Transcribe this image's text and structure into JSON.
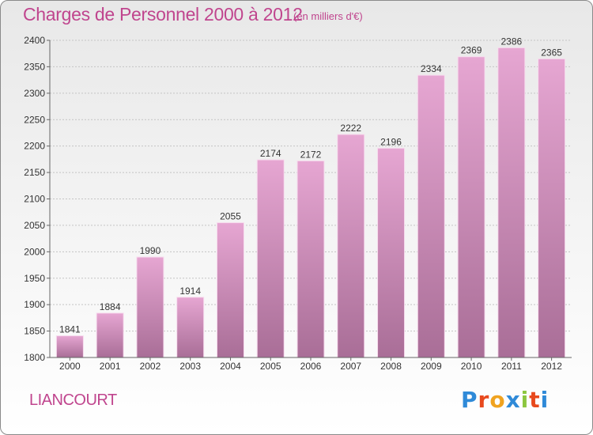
{
  "title": "Charges de Personnel 2000 à 2012",
  "subtitle": "(en milliers d'€)",
  "commune": "LIANCOURT",
  "brand": {
    "text": "Proxiti",
    "letter_colors": [
      "#2f8ad8",
      "#e8491d",
      "#f0a320",
      "#2f8ad8",
      "#8cc63f",
      "#e8491d",
      "#2f8ad8"
    ]
  },
  "colors": {
    "bar_top": "#e6a6d2",
    "bar_bottom": "#a96e97",
    "accent": "#c0458e"
  },
  "chart_data": {
    "type": "bar",
    "categories": [
      "2000",
      "2001",
      "2002",
      "2003",
      "2004",
      "2005",
      "2006",
      "2007",
      "2008",
      "2009",
      "2010",
      "2011",
      "2012"
    ],
    "values": [
      1841,
      1884,
      1990,
      1914,
      2055,
      2174,
      2172,
      2222,
      2196,
      2334,
      2369,
      2386,
      2365
    ],
    "ylim": [
      1800,
      2400
    ],
    "yticks": [
      1800,
      1850,
      1900,
      1950,
      2000,
      2050,
      2100,
      2150,
      2200,
      2250,
      2300,
      2350,
      2400
    ],
    "grid": true,
    "data_labels": true
  }
}
